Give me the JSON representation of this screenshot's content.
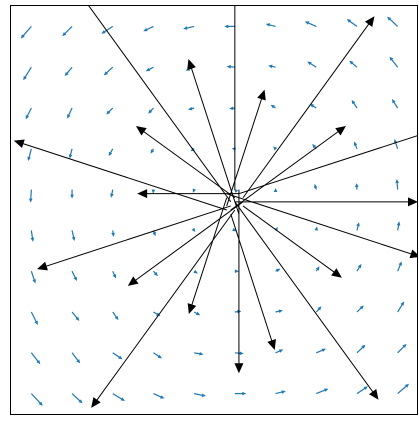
{
  "chart_data": {
    "type": "quiver",
    "xlim": [
      0,
      1
    ],
    "ylim": [
      0,
      1
    ],
    "series": [
      {
        "color": "#1f77b4",
        "grid_x": [
          0.05,
          0.15,
          0.25,
          0.35,
          0.45,
          0.55,
          0.65,
          0.75,
          0.85,
          0.95
        ],
        "grid_y": [
          0.05,
          0.15,
          0.25,
          0.35,
          0.45,
          0.55,
          0.65,
          0.75,
          0.85,
          0.95
        ],
        "u": [
          [
            0.028,
            0.026,
            0.03,
            0.027,
            0.029,
            0.028,
            0.025,
            0.03,
            0.027,
            0.028
          ],
          [
            0.022,
            0.02,
            0.024,
            0.021,
            0.023,
            0.022,
            0.019,
            0.024,
            0.021,
            0.022
          ],
          [
            0.016,
            0.018,
            0.014,
            0.017,
            0.015,
            0.016,
            0.018,
            0.013,
            0.017,
            0.016
          ],
          [
            0.01,
            0.012,
            0.008,
            0.011,
            0.009,
            0.01,
            0.012,
            0.008,
            0.011,
            0.01
          ],
          [
            0.004,
            0.006,
            0.002,
            0.005,
            0.003,
            0.004,
            0.006,
            0.002,
            0.005,
            0.004
          ],
          [
            -0.002,
            0.0,
            -0.004,
            -0.001,
            -0.003,
            -0.002,
            0.0,
            -0.004,
            -0.001,
            -0.002
          ],
          [
            -0.008,
            -0.006,
            -0.01,
            -0.007,
            -0.009,
            -0.008,
            -0.006,
            -0.01,
            -0.007,
            -0.008
          ],
          [
            -0.014,
            -0.012,
            -0.016,
            -0.013,
            -0.015,
            -0.014,
            -0.012,
            -0.016,
            -0.013,
            -0.014
          ],
          [
            -0.02,
            -0.018,
            -0.022,
            -0.019,
            -0.021,
            -0.02,
            -0.018,
            -0.022,
            -0.019,
            -0.02
          ],
          [
            -0.026,
            -0.024,
            -0.028,
            -0.025,
            -0.027,
            -0.026,
            -0.024,
            -0.028,
            -0.025,
            -0.026
          ]
        ],
        "v": [
          [
            -0.03,
            -0.024,
            -0.018,
            -0.012,
            -0.006,
            0.0,
            0.006,
            0.012,
            0.018,
            0.024
          ],
          [
            -0.028,
            -0.026,
            -0.016,
            -0.014,
            -0.004,
            -0.002,
            0.008,
            0.01,
            0.02,
            0.022
          ],
          [
            -0.032,
            -0.022,
            -0.02,
            -0.01,
            -0.008,
            0.002,
            0.004,
            0.014,
            0.016,
            0.026
          ],
          [
            -0.03,
            -0.024,
            -0.018,
            -0.012,
            -0.006,
            0.0,
            0.006,
            0.012,
            0.018,
            0.024
          ],
          [
            -0.028,
            -0.026,
            -0.016,
            -0.014,
            -0.004,
            -0.002,
            0.008,
            0.01,
            0.02,
            0.022
          ],
          [
            -0.032,
            -0.022,
            -0.02,
            -0.01,
            -0.008,
            0.002,
            0.004,
            0.014,
            0.016,
            0.026
          ],
          [
            -0.03,
            -0.024,
            -0.018,
            -0.012,
            -0.006,
            0.0,
            0.006,
            0.012,
            0.018,
            0.024
          ],
          [
            -0.028,
            -0.026,
            -0.016,
            -0.014,
            -0.004,
            -0.002,
            0.008,
            0.01,
            0.02,
            0.022
          ],
          [
            -0.032,
            -0.022,
            -0.02,
            -0.01,
            -0.008,
            0.002,
            0.004,
            0.014,
            0.016,
            0.026
          ],
          [
            -0.03,
            -0.024,
            -0.018,
            -0.012,
            -0.006,
            0.0,
            0.006,
            0.012,
            0.018,
            0.024
          ]
        ]
      },
      {
        "color": "#000000",
        "x": [
          0.55,
          0.56,
          0.54,
          0.57,
          0.53,
          0.55,
          0.56,
          0.54,
          0.55,
          0.53,
          0.56,
          0.54,
          0.57,
          0.55,
          0.53,
          0.56,
          0.54,
          0.55,
          0.57,
          0.53
        ],
        "y": [
          0.52,
          0.54,
          0.5,
          0.53,
          0.51,
          0.55,
          0.49,
          0.52,
          0.53,
          0.5,
          0.54,
          0.51,
          0.52,
          0.5,
          0.53,
          0.55,
          0.49,
          0.52,
          0.51,
          0.54
        ],
        "u": [
          0.45,
          0.571,
          0.283,
          0.323,
          0.093,
          0,
          -0.124,
          -0.382,
          -0.243,
          -0.523,
          -0.25,
          -0.476,
          -0.283,
          -0.353,
          -0.093,
          0,
          0.108,
          0.353,
          0.243,
          0.476
        ],
        "v": [
          0,
          0.185,
          0.206,
          0.445,
          0.285,
          0.5,
          0.38,
          0.526,
          0.176,
          0.17,
          0,
          -0.155,
          -0.206,
          -0.485,
          -0.285,
          -0.45,
          -0.333,
          -0.485,
          -0.176,
          -0.155
        ]
      }
    ]
  }
}
